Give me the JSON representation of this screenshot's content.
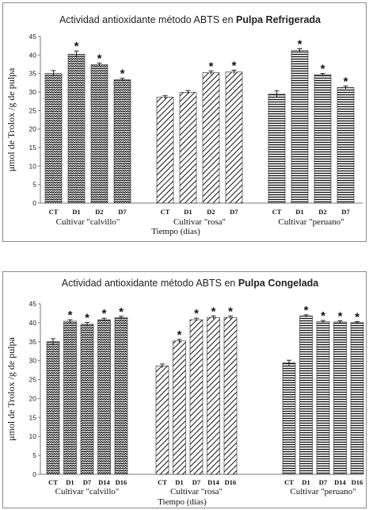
{
  "chart_data": [
    {
      "type": "bar",
      "title_prefix": "Actividad antioxidante método ABTS  en",
      "title_bold": "Pulpa Refrigerada",
      "ylabel": "μmol de Trolox /g de pulpa",
      "xlabel": "Tiempo  (días)",
      "ylim": [
        0,
        45
      ],
      "yticks": [
        0,
        5,
        10,
        15,
        20,
        25,
        30,
        35,
        40,
        45
      ],
      "groups": [
        {
          "name": "Cultivar \"calvillo\"",
          "pattern": "wave",
          "categories": [
            "CT",
            "D1",
            "D2",
            "D7"
          ],
          "values": [
            35,
            40.2,
            37.4,
            33.3
          ],
          "errors": [
            0.8,
            0.9,
            0.4,
            0.4
          ],
          "significant": [
            false,
            true,
            true,
            true
          ]
        },
        {
          "name": "Cultivar \"rosa\"",
          "pattern": "diagonal",
          "categories": [
            "CT",
            "D1",
            "D2",
            "D7"
          ],
          "values": [
            28.6,
            29.9,
            35.2,
            35.4
          ],
          "errors": [
            0.4,
            0.5,
            0.5,
            0.5
          ],
          "significant": [
            false,
            false,
            true,
            true
          ]
        },
        {
          "name": "Cultivar \"peruano\"",
          "pattern": "horizontal",
          "categories": [
            "CT",
            "D1",
            "D2",
            "D7"
          ],
          "values": [
            29.4,
            41.2,
            34.7,
            31.2
          ],
          "errors": [
            0.9,
            0.5,
            0.3,
            0.4
          ],
          "significant": [
            false,
            true,
            true,
            true
          ]
        }
      ]
    },
    {
      "type": "bar",
      "title_prefix": "Actividad antioxidante método ABTS en",
      "title_bold": "Pulpa Congelada",
      "ylabel": "μmol de Trolox /g de pulpa",
      "xlabel": "Tiempo  (días)",
      "ylim": [
        0,
        45
      ],
      "yticks": [
        0,
        5,
        10,
        15,
        20,
        25,
        30,
        35,
        40,
        45
      ],
      "groups": [
        {
          "name": "Cultivar \"calvillo\"",
          "pattern": "wave",
          "categories": [
            "CT",
            "D1",
            "D7",
            "D14",
            "D16"
          ],
          "values": [
            35,
            40.4,
            39.6,
            40.8,
            41.3
          ],
          "errors": [
            0.8,
            0.4,
            0.5,
            0.4,
            0.4
          ],
          "significant": [
            false,
            true,
            true,
            true,
            true
          ]
        },
        {
          "name": "Cultivar \"rosa\"",
          "pattern": "diagonal",
          "categories": [
            "CT",
            "D1",
            "D7",
            "D14",
            "D16"
          ],
          "values": [
            28.6,
            35.2,
            40.8,
            41.4,
            41.4
          ],
          "errors": [
            0.5,
            0.4,
            0.4,
            0.4,
            0.4
          ],
          "significant": [
            false,
            true,
            true,
            true,
            true
          ]
        },
        {
          "name": "Cultivar \"peruano\"",
          "pattern": "horizontal",
          "categories": [
            "CT",
            "D1",
            "D7",
            "D14",
            "D16"
          ],
          "values": [
            29.4,
            41.8,
            40.3,
            40.2,
            40
          ],
          "errors": [
            0.7,
            0.3,
            0.3,
            0.3,
            0.3
          ],
          "significant": [
            false,
            true,
            true,
            true,
            true
          ]
        }
      ]
    }
  ]
}
